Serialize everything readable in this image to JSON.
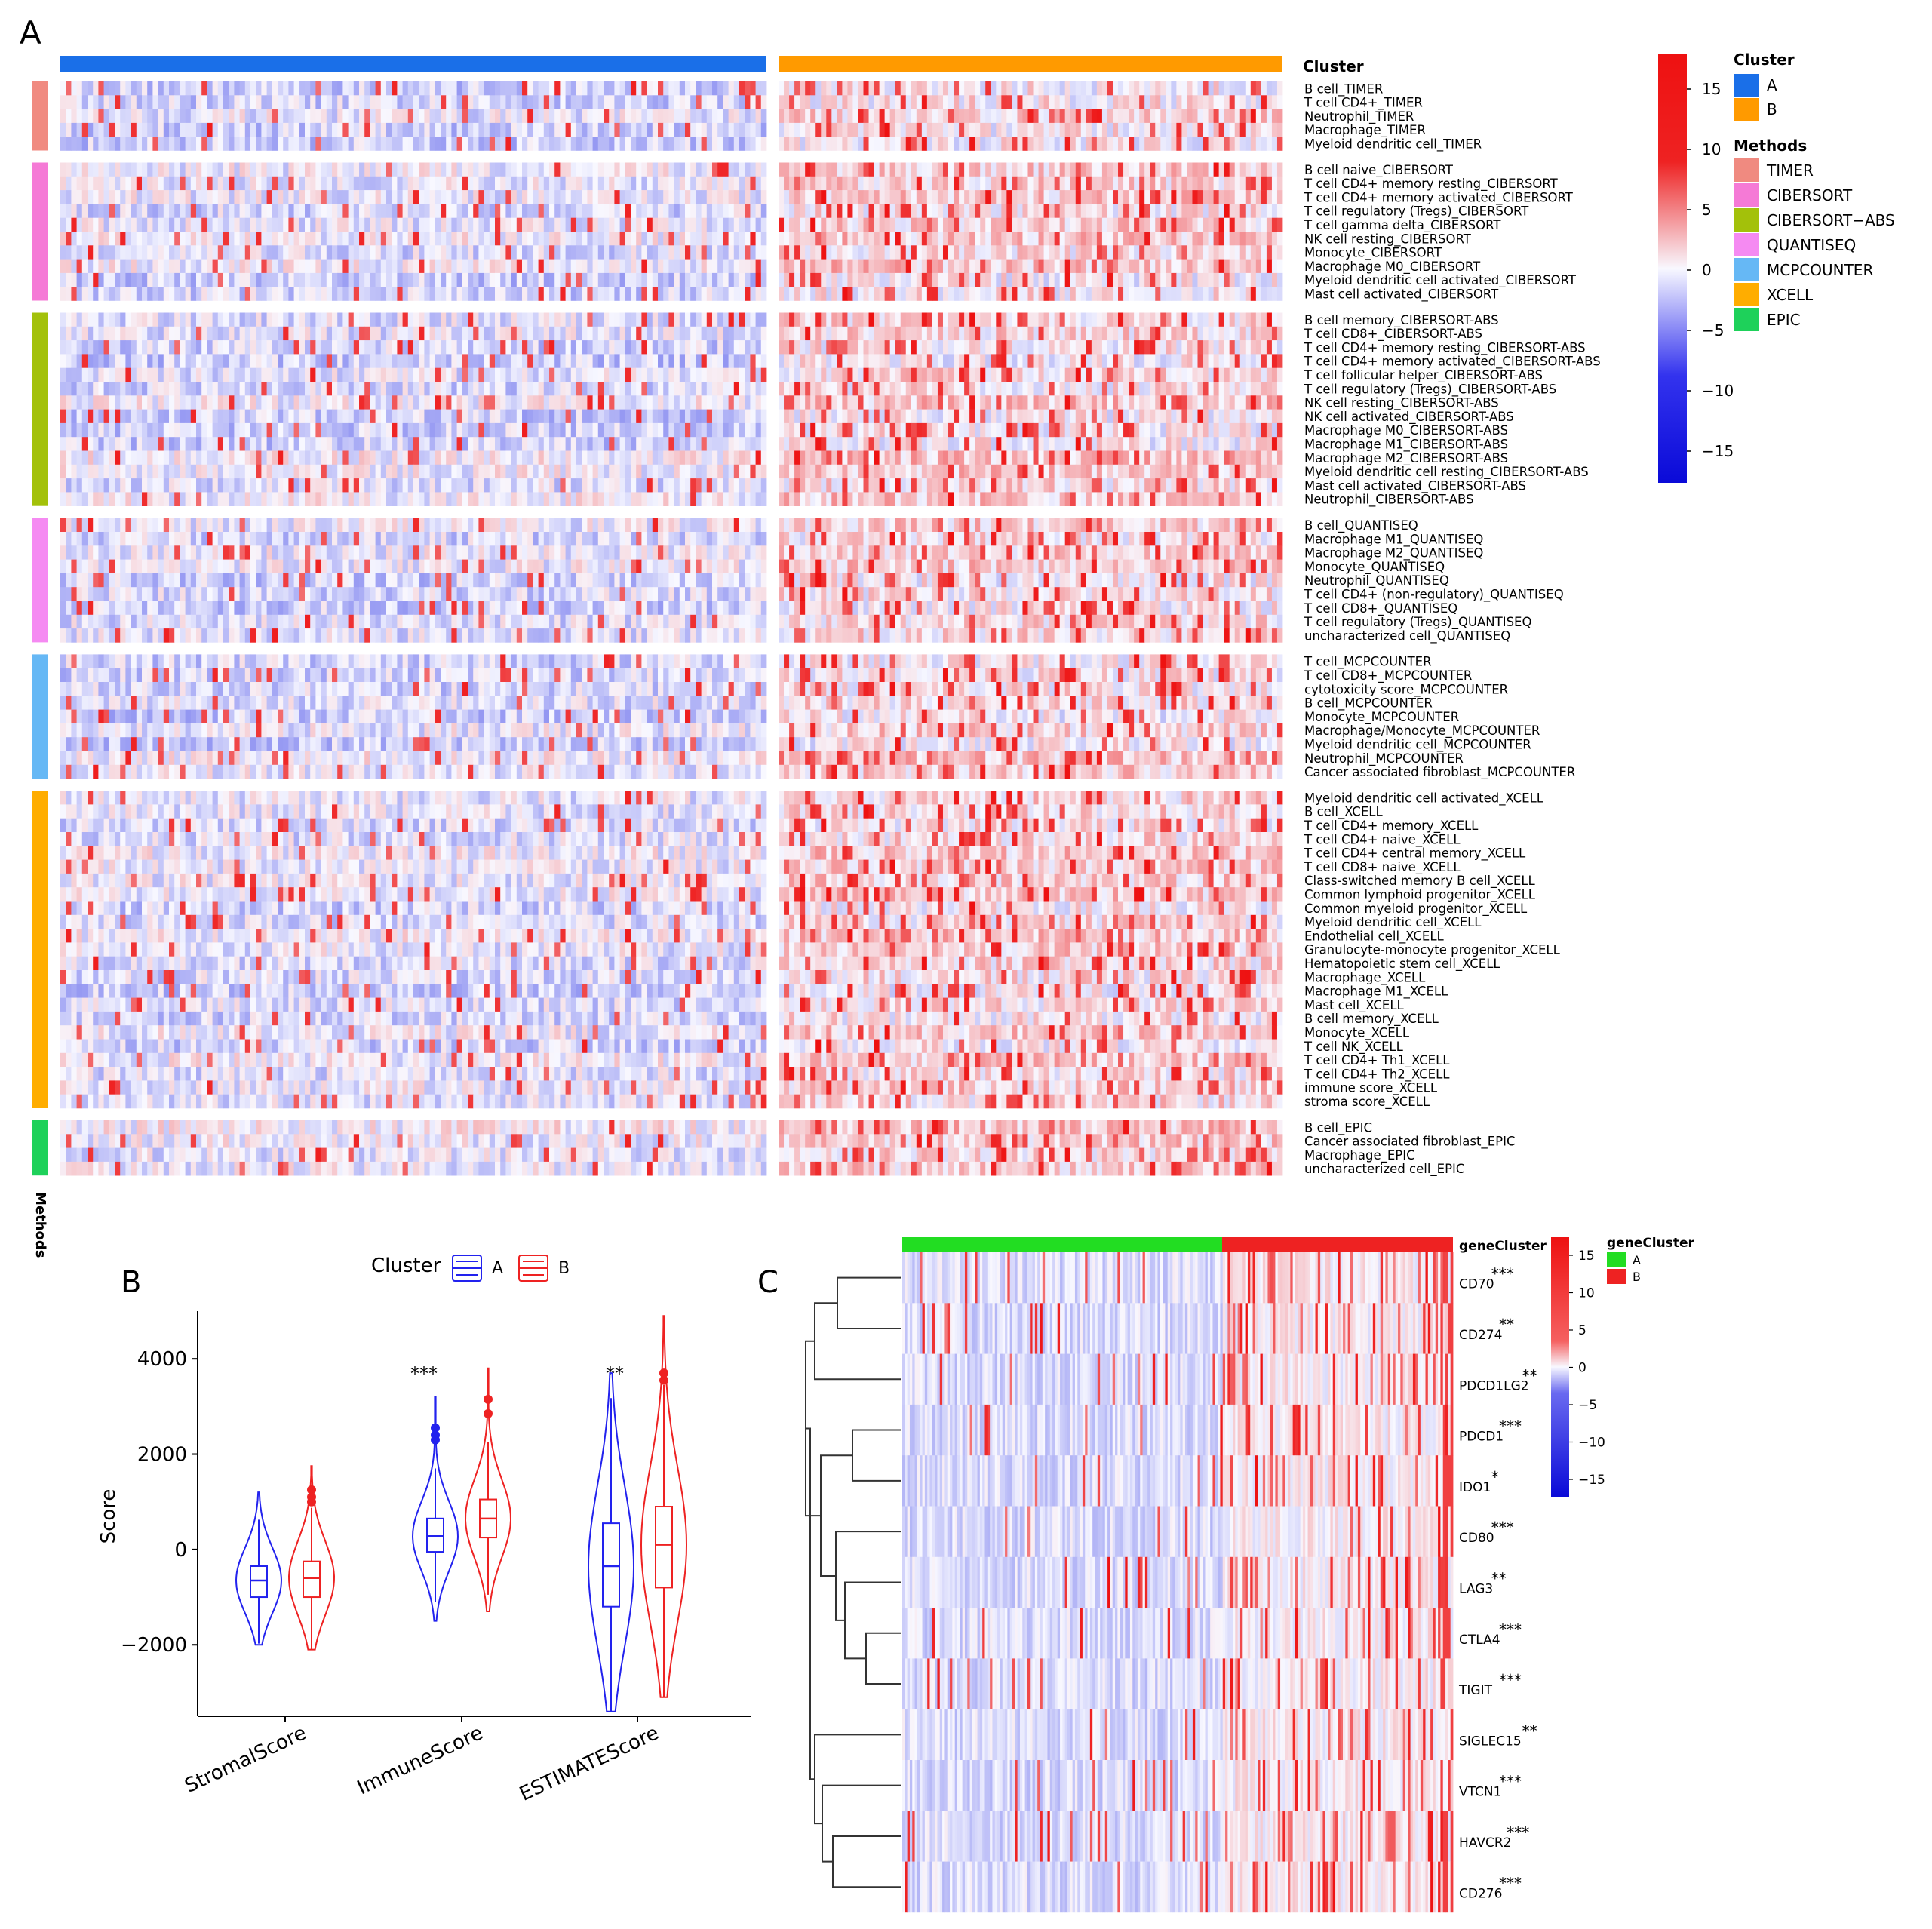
{
  "panel_labels": {
    "a": "A",
    "b": "B",
    "c": "C"
  },
  "colors": {
    "cluster_A": "#1a6fe8",
    "cluster_B": "#ff9a00",
    "heat_low": "#0a12e0",
    "heat_mid": "#f2f2fb",
    "heat_high": "#ee1111",
    "gene_A": "#22dd22",
    "gene_B": "#ee2222",
    "violin_A": "#2222ee",
    "violin_B": "#ee2222"
  },
  "panel_a": {
    "cluster_bar_label": "Cluster",
    "methods_axis_label": "Methods",
    "method_colors": {
      "TIMER": "#f08a80",
      "CIBERSORT": "#f57ad6",
      "CIBERSORT-ABS": "#a3c10a",
      "QUANTISEQ": "#f58af2",
      "MCPCOUNTER": "#66b8f5",
      "XCELL": "#ffad00",
      "EPIC": "#1ed15a"
    },
    "groups": [
      {
        "method": "TIMER",
        "rows": [
          "B cell_TIMER",
          "T cell CD4+_TIMER",
          "Neutrophil_TIMER",
          "Macrophage_TIMER",
          "Myeloid dendritic cell_TIMER"
        ]
      },
      {
        "method": "CIBERSORT",
        "rows": [
          "B cell naive_CIBERSORT",
          "T cell CD4+ memory resting_CIBERSORT",
          "T cell CD4+ memory activated_CIBERSORT",
          "T cell regulatory (Tregs)_CIBERSORT",
          "T cell gamma delta_CIBERSORT",
          "NK cell resting_CIBERSORT",
          "Monocyte_CIBERSORT",
          "Macrophage M0_CIBERSORT",
          "Myeloid dendritic cell activated_CIBERSORT",
          "Mast cell activated_CIBERSORT"
        ]
      },
      {
        "method": "CIBERSORT-ABS",
        "rows": [
          "B cell memory_CIBERSORT-ABS",
          "T cell CD8+_CIBERSORT-ABS",
          "T cell CD4+ memory resting_CIBERSORT-ABS",
          "T cell CD4+ memory activated_CIBERSORT-ABS",
          "T cell follicular helper_CIBERSORT-ABS",
          "T cell regulatory (Tregs)_CIBERSORT-ABS",
          "NK cell resting_CIBERSORT-ABS",
          "NK cell activated_CIBERSORT-ABS",
          "Macrophage M0_CIBERSORT-ABS",
          "Macrophage M1_CIBERSORT-ABS",
          "Macrophage M2_CIBERSORT-ABS",
          "Myeloid dendritic cell resting_CIBERSORT-ABS",
          "Mast cell activated_CIBERSORT-ABS",
          "Neutrophil_CIBERSORT-ABS"
        ]
      },
      {
        "method": "QUANTISEQ",
        "rows": [
          "B cell_QUANTISEQ",
          "Macrophage M1_QUANTISEQ",
          "Macrophage M2_QUANTISEQ",
          "Monocyte_QUANTISEQ",
          "Neutrophil_QUANTISEQ",
          "T cell CD4+ (non-regulatory)_QUANTISEQ",
          "T cell CD8+_QUANTISEQ",
          "T cell regulatory (Tregs)_QUANTISEQ",
          "uncharacterized cell_QUANTISEQ"
        ]
      },
      {
        "method": "MCPCOUNTER",
        "rows": [
          "T cell_MCPCOUNTER",
          "T cell CD8+_MCPCOUNTER",
          "cytotoxicity score_MCPCOUNTER",
          "B cell_MCPCOUNTER",
          "Monocyte_MCPCOUNTER",
          "Macrophage/Monocyte_MCPCOUNTER",
          "Myeloid dendritic cell_MCPCOUNTER",
          "Neutrophil_MCPCOUNTER",
          "Cancer associated fibroblast_MCPCOUNTER"
        ]
      },
      {
        "method": "XCELL",
        "rows": [
          "Myeloid dendritic cell activated_XCELL",
          "B cell_XCELL",
          "T cell CD4+ memory_XCELL",
          "T cell CD4+ naive_XCELL",
          "T cell CD4+ central memory_XCELL",
          "T cell CD8+ naive_XCELL",
          "Class-switched memory B cell_XCELL",
          "Common lymphoid progenitor_XCELL",
          "Common myeloid progenitor_XCELL",
          "Myeloid dendritic cell_XCELL",
          "Endothelial cell_XCELL",
          "Granulocyte-monocyte progenitor_XCELL",
          "Hematopoietic stem cell_XCELL",
          "Macrophage_XCELL",
          "Macrophage M1_XCELL",
          "Mast cell_XCELL",
          "B cell memory_XCELL",
          "Monocyte_XCELL",
          "T cell NK_XCELL",
          "T cell CD4+ Th1_XCELL",
          "T cell CD4+ Th2_XCELL",
          "immune score_XCELL",
          "stroma score_XCELL"
        ]
      },
      {
        "method": "EPIC",
        "rows": [
          "B cell_EPIC",
          "Cancer associated fibroblast_EPIC",
          "Macrophage_EPIC",
          "uncharacterized cell_EPIC"
        ]
      }
    ],
    "colorbar_ticks": [
      "15",
      "10",
      "5",
      "0",
      "−5",
      "−10",
      "−15"
    ],
    "legend_cluster": {
      "title": "Cluster",
      "items": [
        "A",
        "B"
      ]
    },
    "legend_methods": {
      "title": "Methods",
      "items": [
        "TIMER",
        "CIBERSORT",
        "CIBERSORT−ABS",
        "QUANTISEQ",
        "MCPCOUNTER",
        "XCELL",
        "EPIC"
      ]
    }
  },
  "chart_data": [
    {
      "type": "violin",
      "panel": "B",
      "legend_title": "Cluster",
      "legend_items": [
        "A",
        "B"
      ],
      "ylabel": "Score",
      "ylim": [
        -3500,
        5000
      ],
      "yticks": [
        -2000,
        0,
        2000,
        4000
      ],
      "ytick_labels": [
        "−2000",
        "0",
        "2000",
        "4000"
      ],
      "categories": [
        "StromalScore",
        "ImmuneScore",
        "ESTIMATEScore"
      ],
      "significance": [
        "",
        "***",
        "**"
      ],
      "series": [
        {
          "name": "A",
          "min": [
            -2000,
            -1500,
            -3400
          ],
          "q1": [
            -1000,
            -50,
            -1200
          ],
          "median": [
            -650,
            280,
            -350
          ],
          "q3": [
            -350,
            650,
            550
          ],
          "max": [
            1200,
            3200,
            3700
          ],
          "outliers": [
            [],
            [
              2550,
              2400,
              2300
            ],
            []
          ]
        },
        {
          "name": "B",
          "min": [
            -2100,
            -1300,
            -3100
          ],
          "q1": [
            -1000,
            250,
            -800
          ],
          "median": [
            -600,
            650,
            100
          ],
          "q3": [
            -250,
            1050,
            900
          ],
          "max": [
            1750,
            3800,
            4900
          ],
          "outliers": [
            [
              1250,
              1100,
              1000
            ],
            [
              3150,
              2850
            ],
            [
              3700,
              3550
            ]
          ]
        }
      ]
    },
    {
      "type": "heatmap",
      "panel": "C",
      "annotation_title": "geneCluster",
      "annotation_items": [
        "A",
        "B"
      ],
      "rows": [
        "CD70",
        "CD274",
        "PDCD1LG2",
        "PDCD1",
        "IDO1",
        "CD80",
        "LAG3",
        "CTLA4",
        "TIGIT",
        "SIGLEC15",
        "VTCN1",
        "HAVCR2",
        "CD276"
      ],
      "significance": [
        "***",
        "**",
        "**",
        "***",
        "*",
        "***",
        "**",
        "***",
        "***",
        "**",
        "***",
        "***",
        "***"
      ],
      "colorbar_ticks": [
        "15",
        "10",
        "5",
        "0",
        "−5",
        "−10",
        "−15"
      ],
      "color_range": [
        -15,
        15
      ]
    }
  ]
}
